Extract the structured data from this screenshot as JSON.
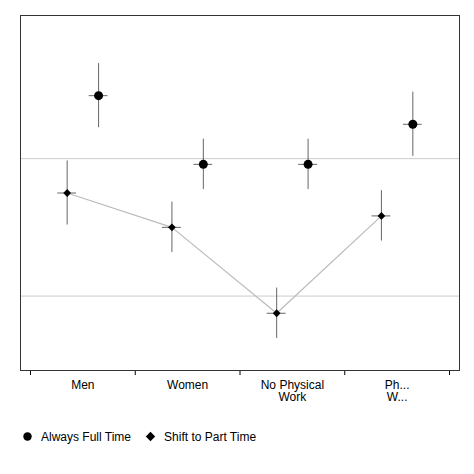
{
  "chart_data": {
    "type": "scatter",
    "categories": [
      "Men",
      "Women",
      "No Physical\nWork",
      "Ph...\nW..."
    ],
    "series": [
      {
        "name": "Always Full Time",
        "marker": "circle",
        "values": [
          3.6,
          3.0,
          3.0,
          3.35
        ],
        "error_low": [
          0.28,
          0.22,
          0.22,
          0.28
        ],
        "error_high": [
          0.28,
          0.22,
          0.22,
          0.28
        ]
      },
      {
        "name": "Shift to Part Time",
        "marker": "diamond",
        "line_style": "solid",
        "values": [
          2.75,
          2.45,
          1.7,
          2.55
        ],
        "error_low": [
          0.28,
          0.22,
          0.22,
          0.22
        ],
        "error_high": [
          0.28,
          0.22,
          0.22,
          0.22
        ]
      }
    ],
    "hlines": [
      3.05,
      1.85
    ],
    "ylim": [
      1.2,
      4.3
    ],
    "tick_labels": "x",
    "legend": "bottom"
  }
}
